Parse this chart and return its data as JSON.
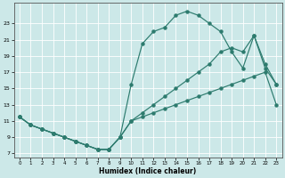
{
  "xlabel": "Humidex (Indice chaleur)",
  "bg_color": "#cce8e8",
  "grid_color": "#ffffff",
  "line_color": "#2d7b6e",
  "curve1_x": [
    0,
    1,
    2,
    3,
    4,
    5,
    6,
    7,
    8,
    9,
    10,
    11,
    12,
    13,
    14,
    15,
    16,
    17,
    18,
    19,
    20,
    21,
    22,
    23
  ],
  "curve1_y": [
    11.5,
    10.5,
    10.0,
    9.5,
    9.0,
    8.5,
    8.0,
    7.5,
    7.5,
    9.0,
    11.0,
    11.5,
    12.0,
    12.5,
    13.0,
    13.5,
    14.0,
    14.5,
    15.0,
    15.5,
    16.0,
    16.5,
    17.0,
    13.0
  ],
  "curve2_x": [
    0,
    1,
    2,
    3,
    4,
    5,
    6,
    7,
    8,
    9,
    10,
    11,
    12,
    13,
    14,
    15,
    16,
    17,
    18,
    19,
    20,
    21,
    22,
    23
  ],
  "curve2_y": [
    11.5,
    10.5,
    10.0,
    9.5,
    9.0,
    8.5,
    8.0,
    7.5,
    7.5,
    9.0,
    15.5,
    20.5,
    22.0,
    22.5,
    24.0,
    24.5,
    24.0,
    23.0,
    22.0,
    19.5,
    17.5,
    21.5,
    18.0,
    15.5
  ],
  "curve3_x": [
    0,
    1,
    2,
    3,
    4,
    5,
    6,
    7,
    8,
    9,
    10,
    11,
    12,
    13,
    14,
    15,
    16,
    17,
    18,
    19,
    20,
    21,
    22,
    23
  ],
  "curve3_y": [
    11.5,
    10.5,
    10.0,
    9.5,
    9.0,
    8.5,
    8.0,
    7.5,
    7.5,
    9.0,
    11.0,
    12.0,
    13.0,
    14.0,
    15.0,
    16.0,
    17.0,
    18.0,
    19.5,
    20.0,
    19.5,
    21.5,
    17.5,
    15.5
  ],
  "xlim": [
    -0.5,
    23.5
  ],
  "ylim": [
    6.5,
    25.5
  ],
  "yticks": [
    7,
    9,
    11,
    13,
    15,
    17,
    19,
    21,
    23
  ],
  "xticks": [
    0,
    1,
    2,
    3,
    4,
    5,
    6,
    7,
    8,
    9,
    10,
    11,
    12,
    13,
    14,
    15,
    16,
    17,
    18,
    19,
    20,
    21,
    22,
    23
  ],
  "figsize": [
    3.2,
    2.0
  ],
  "dpi": 100
}
